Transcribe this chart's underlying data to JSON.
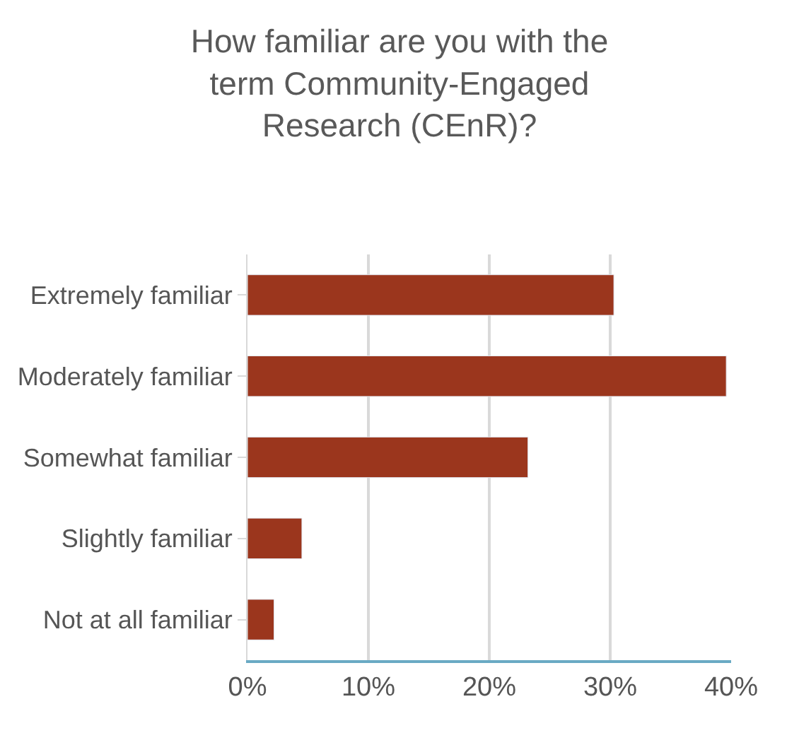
{
  "chart_data": {
    "type": "bar",
    "orientation": "horizontal",
    "title": "How familiar are you with the term Community-Engaged Research (CEnR)?",
    "categories": [
      "Extremely familiar",
      "Moderately familiar",
      "Somewhat familiar",
      "Slightly familiar",
      "Not at all familiar"
    ],
    "values": [
      30.3,
      39.6,
      23.2,
      4.5,
      2.2
    ],
    "color": "#9b361d",
    "xlim": [
      0,
      40
    ],
    "xticks": [
      {
        "value": 0,
        "label": "0%"
      },
      {
        "value": 10,
        "label": "10%"
      },
      {
        "value": 20,
        "label": "20%"
      },
      {
        "value": 30,
        "label": "30%"
      },
      {
        "value": 40,
        "label": "40%"
      }
    ],
    "grid": "x",
    "legend": false
  }
}
